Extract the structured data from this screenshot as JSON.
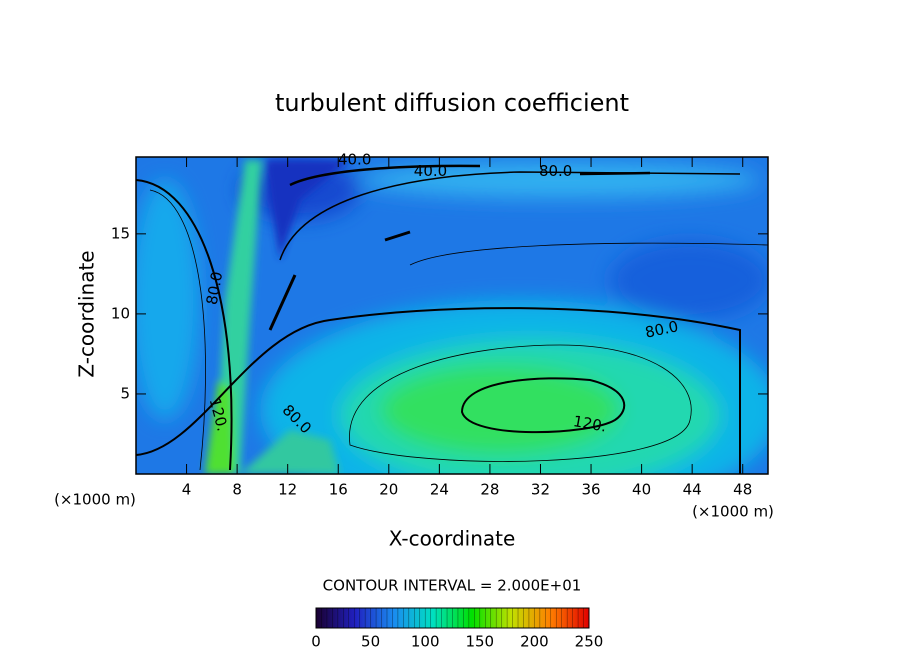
{
  "chart_data": {
    "type": "contour",
    "title": "turbulent diffusion coefficient",
    "xlabel": "X-coordinate",
    "ylabel": "Z-coordinate",
    "x_unit": "(×1000 m)",
    "y_unit": "(×1000 m)",
    "xlim": [
      0,
      50
    ],
    "ylim": [
      0,
      19.8
    ],
    "xticks": [
      4,
      8,
      12,
      16,
      20,
      24,
      28,
      32,
      36,
      40,
      44,
      48
    ],
    "yticks": [
      5,
      10,
      15
    ],
    "contour_interval": "CONTOUR INTERVAL = 2.000E+01",
    "annotations": [
      {
        "value": 40,
        "label": "40.0",
        "x": 17.3,
        "y": 19.6,
        "angle": 0
      },
      {
        "value": 40,
        "label": "40.0",
        "x": 23.3,
        "y": 18.9,
        "angle": 0
      },
      {
        "value": 80,
        "label": "80.0",
        "x": 33.2,
        "y": 18.9,
        "angle": 0
      },
      {
        "value": 80,
        "label": "80.0",
        "x": 6.25,
        "y": 11.6,
        "angle": 80
      },
      {
        "value": 80,
        "label": "80.0",
        "x": 41.6,
        "y": 9.0,
        "angle": 12
      },
      {
        "value": 80,
        "label": "80.0",
        "x": 12.7,
        "y": 3.4,
        "angle": -45
      },
      {
        "value": 120,
        "label": "120.",
        "x": 6.5,
        "y": 3.7,
        "angle": -75
      },
      {
        "value": 120,
        "label": "120.",
        "x": 35.9,
        "y": 3.1,
        "angle": -10
      }
    ],
    "colorbar": {
      "lim": [
        0,
        250
      ],
      "ticks": [
        0,
        50,
        100,
        150,
        200,
        250
      ],
      "colors": [
        "#1a0030",
        "#2020c0",
        "#1a8cf0",
        "#00e0c0",
        "#00e000",
        "#c0e000",
        "#ff8000",
        "#e00000"
      ]
    }
  }
}
